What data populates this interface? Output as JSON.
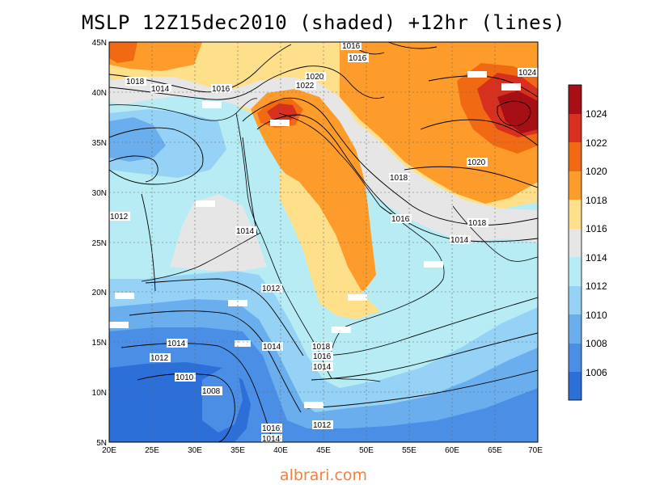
{
  "title": "MSLP 12Z15dec2010 (shaded) +12hr (lines)",
  "footer": "albrari.com",
  "lat_labels": [
    "45N",
    "40N",
    "35N",
    "30N",
    "25N",
    "20N",
    "15N",
    "10N",
    "5N"
  ],
  "lon_labels": [
    "20E",
    "25E",
    "30E",
    "35E",
    "40E",
    "45E",
    "50E",
    "55E",
    "60E",
    "65E",
    "70E"
  ],
  "colorbar": {
    "levels": [
      "1024",
      "1022",
      "1020",
      "1018",
      "1016",
      "1014",
      "1012",
      "1010",
      "1008",
      "1006"
    ],
    "colors": {
      "above_1024": "#a50f15",
      "1022_1024": "#d7301f",
      "1020_1022": "#f16913",
      "1018_1020": "#fd9b2b",
      "1016_1018": "#fee08b",
      "1014_1016": "#e6e6e6",
      "1012_1014": "#b7ecf4",
      "1010_1012": "#95d2f5",
      "1008_1010": "#6aaeee",
      "1006_1008": "#4b8ee6",
      "below_1006": "#2c6fd8"
    }
  },
  "contour_labels": [
    "1016",
    "1016",
    "1018",
    "1014",
    "1016",
    "1020",
    "1022",
    "1024",
    "1018",
    "1020",
    "1012",
    "1014",
    "1016",
    "1018",
    "1014",
    "1012",
    "1014",
    "1018",
    "1016",
    "1014",
    "1012",
    "1010",
    "1008",
    "1014",
    "1016",
    "1014",
    "1012"
  ]
}
